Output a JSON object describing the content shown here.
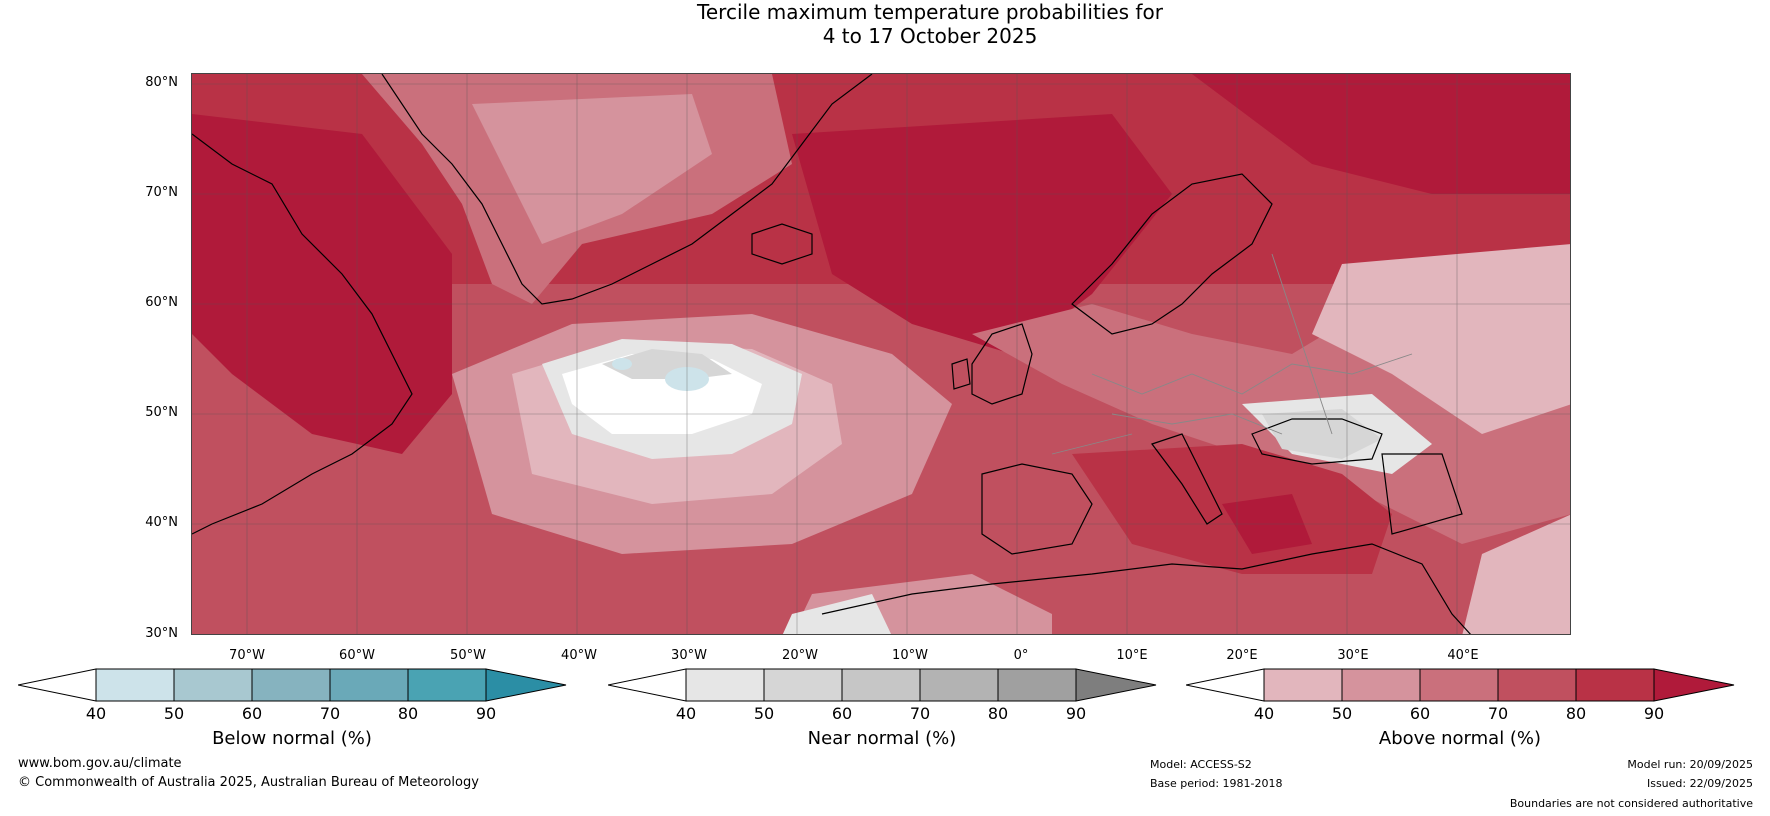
{
  "title_line1": "Tercile maximum temperature probabilities for",
  "title_line2": "4 to 17 October 2025",
  "lat_labels": [
    "80°N",
    "70°N",
    "60°N",
    "50°N",
    "40°N",
    "30°N"
  ],
  "lon_labels": [
    "70°W",
    "60°W",
    "50°W",
    "40°W",
    "30°W",
    "20°W",
    "10°W",
    "0°",
    "10°E",
    "20°E",
    "30°E",
    "40°E"
  ],
  "legends": {
    "below": {
      "label": "Below normal (%)",
      "ticks": [
        "40",
        "50",
        "60",
        "70",
        "80",
        "90"
      ],
      "colors": [
        "#ffffff",
        "#cde3ea",
        "#a8c8d0",
        "#86b3bf",
        "#6aa9b8",
        "#4aa3b3",
        "#2b8ea5"
      ]
    },
    "near": {
      "label": "Near normal (%)",
      "ticks": [
        "40",
        "50",
        "60",
        "70",
        "80",
        "90"
      ],
      "colors": [
        "#ffffff",
        "#e6e6e6",
        "#d6d6d6",
        "#c6c6c6",
        "#b3b3b3",
        "#a0a0a0",
        "#7e7e7e"
      ]
    },
    "above": {
      "label": "Above normal (%)",
      "ticks": [
        "40",
        "50",
        "60",
        "70",
        "80",
        "90"
      ],
      "colors": [
        "#ffffff",
        "#e2b6bd",
        "#d5939d",
        "#ca707c",
        "#c0505f",
        "#b93246",
        "#b01a3a"
      ]
    }
  },
  "footer": {
    "website": "www.bom.gov.au/climate",
    "copyright": "© Commonwealth of Australia 2025, Australian Bureau of Meteorology",
    "model": "Model: ACCESS-S2",
    "base_period": "Base period: 1981-2018",
    "model_run": "Model run: 20/09/2025",
    "issued": "Issued: 22/09/2025",
    "disclaimer": "Boundaries are not considered authoritative"
  }
}
